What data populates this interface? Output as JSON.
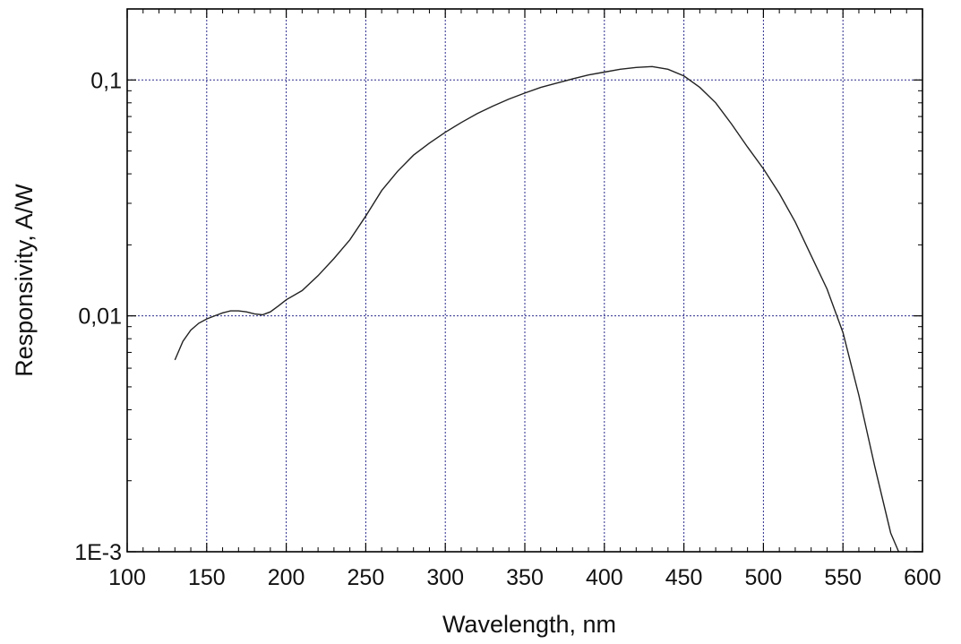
{
  "chart_data": {
    "type": "line",
    "title": "",
    "xlabel": "Wavelength, nm",
    "ylabel": "Responsivity, A/W",
    "xlim": [
      100,
      600
    ],
    "ylim": [
      0.001,
      0.2
    ],
    "yscale": "log",
    "grid": true,
    "x_ticks": [
      100,
      150,
      200,
      250,
      300,
      350,
      400,
      450,
      500,
      550,
      600
    ],
    "x_tick_labels": [
      "100",
      "150",
      "200",
      "250",
      "300",
      "350",
      "400",
      "450",
      "500",
      "550",
      "600"
    ],
    "y_ticks": [
      0.001,
      0.01,
      0.1
    ],
    "y_tick_labels": [
      "1E-3",
      "0,01",
      "0,1"
    ],
    "colors": {
      "line": "#222222",
      "grid": "#2b2b8c",
      "axes": "#000000"
    },
    "series": [
      {
        "x": [
          130,
          135,
          140,
          145,
          150,
          155,
          160,
          165,
          170,
          175,
          180,
          185,
          190,
          195,
          200,
          210,
          220,
          230,
          240,
          250,
          260,
          270,
          280,
          290,
          300,
          310,
          320,
          330,
          340,
          350,
          360,
          370,
          380,
          390,
          400,
          410,
          420,
          430,
          440,
          450,
          460,
          470,
          480,
          490,
          500,
          510,
          520,
          530,
          540,
          550,
          560,
          570,
          580,
          585
        ],
        "y": [
          0.0065,
          0.0078,
          0.0087,
          0.0093,
          0.0097,
          0.01,
          0.0103,
          0.0105,
          0.0105,
          0.0104,
          0.0102,
          0.0101,
          0.0104,
          0.011,
          0.0117,
          0.0128,
          0.0148,
          0.0175,
          0.021,
          0.0265,
          0.034,
          0.041,
          0.048,
          0.054,
          0.06,
          0.066,
          0.072,
          0.0775,
          0.083,
          0.088,
          0.093,
          0.097,
          0.101,
          0.105,
          0.108,
          0.111,
          0.113,
          0.114,
          0.111,
          0.104,
          0.093,
          0.08,
          0.065,
          0.052,
          0.042,
          0.033,
          0.025,
          0.018,
          0.013,
          0.0085,
          0.0046,
          0.0023,
          0.0012,
          0.001
        ]
      }
    ]
  }
}
